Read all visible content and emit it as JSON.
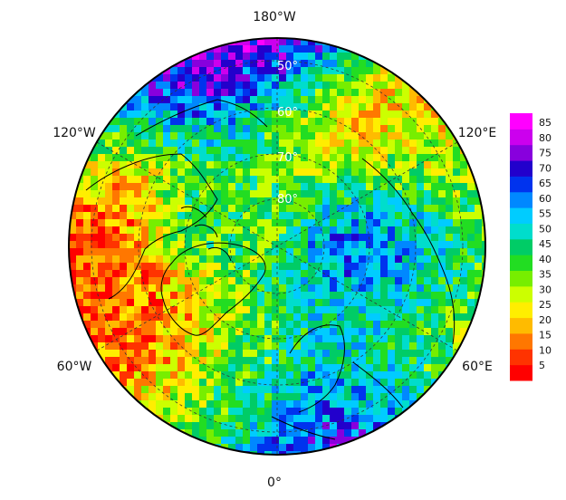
{
  "map": {
    "projection": "north-polar-stereographic",
    "longitude_labels": {
      "top": "180°W",
      "upper_left": "120°W",
      "upper_right": "120°E",
      "lower_left": "60°W",
      "lower_right": "60°E",
      "bottom": "0°"
    },
    "latitude_labels": [
      "50°",
      "60°",
      "70°",
      "80°"
    ],
    "grid": true,
    "coastlines": true
  },
  "colorbar": {
    "ticks": [
      "85",
      "80",
      "75",
      "70",
      "65",
      "60",
      "55",
      "50",
      "45",
      "40",
      "35",
      "30",
      "25",
      "20",
      "15",
      "10",
      "5"
    ],
    "min": 0,
    "max": 88,
    "colors": [
      "#ff0000",
      "#ff3300",
      "#ff7700",
      "#ffbb00",
      "#ffee00",
      "#ccff00",
      "#77ee00",
      "#22dd22",
      "#00cc66",
      "#00ddcc",
      "#00ccff",
      "#0088ff",
      "#0033ee",
      "#2200cc",
      "#8800dd",
      "#cc00ee",
      "#ff00ff"
    ]
  }
}
